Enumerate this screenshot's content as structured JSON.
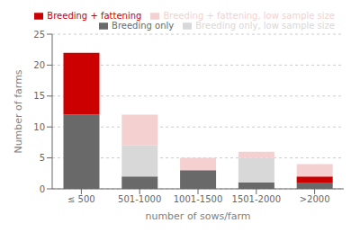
{
  "chart_data": {
    "type": "bar",
    "stacked": true,
    "categories": [
      "≤ 500",
      "501-1000",
      "1001-1500",
      "1501-2000",
      ">2000"
    ],
    "series": [
      {
        "name": "Breeding only",
        "color": "#696969",
        "values": [
          12,
          2,
          3,
          1,
          1
        ]
      },
      {
        "name": "Breeding + fattening",
        "color": "#cc0000",
        "values": [
          10,
          0,
          0,
          0,
          1
        ]
      },
      {
        "name": "Breeding only, low sample size",
        "color": "#d8d8d8",
        "values": [
          0,
          5,
          0,
          4,
          0
        ]
      },
      {
        "name": "Breeding + fattening, low sample size",
        "color": "#f5d0d0",
        "values": [
          0,
          5,
          2,
          1,
          2
        ]
      }
    ],
    "xlabel": "number of sows/farm",
    "ylabel": "Number of farms",
    "ylim": [
      0,
      25
    ],
    "yticks": [
      0,
      5,
      10,
      15,
      20,
      25
    ],
    "grid": true,
    "legend": "upper right"
  }
}
